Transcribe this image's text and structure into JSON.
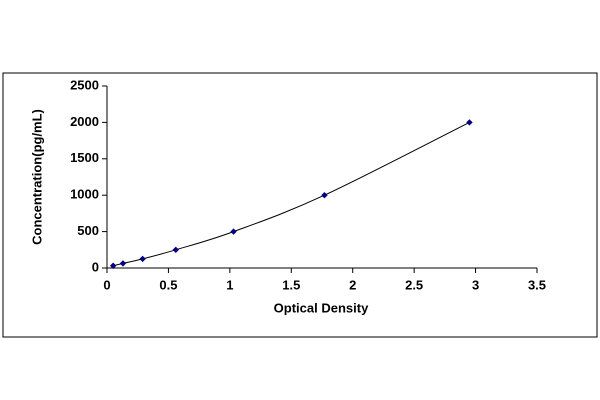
{
  "chart_data": {
    "type": "line",
    "x": [
      0.05,
      0.13,
      0.29,
      0.56,
      1.03,
      1.77,
      2.95
    ],
    "values": [
      31,
      63,
      125,
      250,
      500,
      1000,
      2000
    ],
    "color": "#000080",
    "line_color": "#000000",
    "xlabel": "Optical Density",
    "ylabel": "Concentration(pg/mL)",
    "xlim": [
      0,
      3.5
    ],
    "xticks": [
      0,
      0.5,
      1,
      1.5,
      2,
      2.5,
      3,
      3.5
    ],
    "ylim": [
      0,
      2500
    ],
    "yticks": [
      0,
      500,
      1000,
      1500,
      2000,
      2500
    ]
  }
}
